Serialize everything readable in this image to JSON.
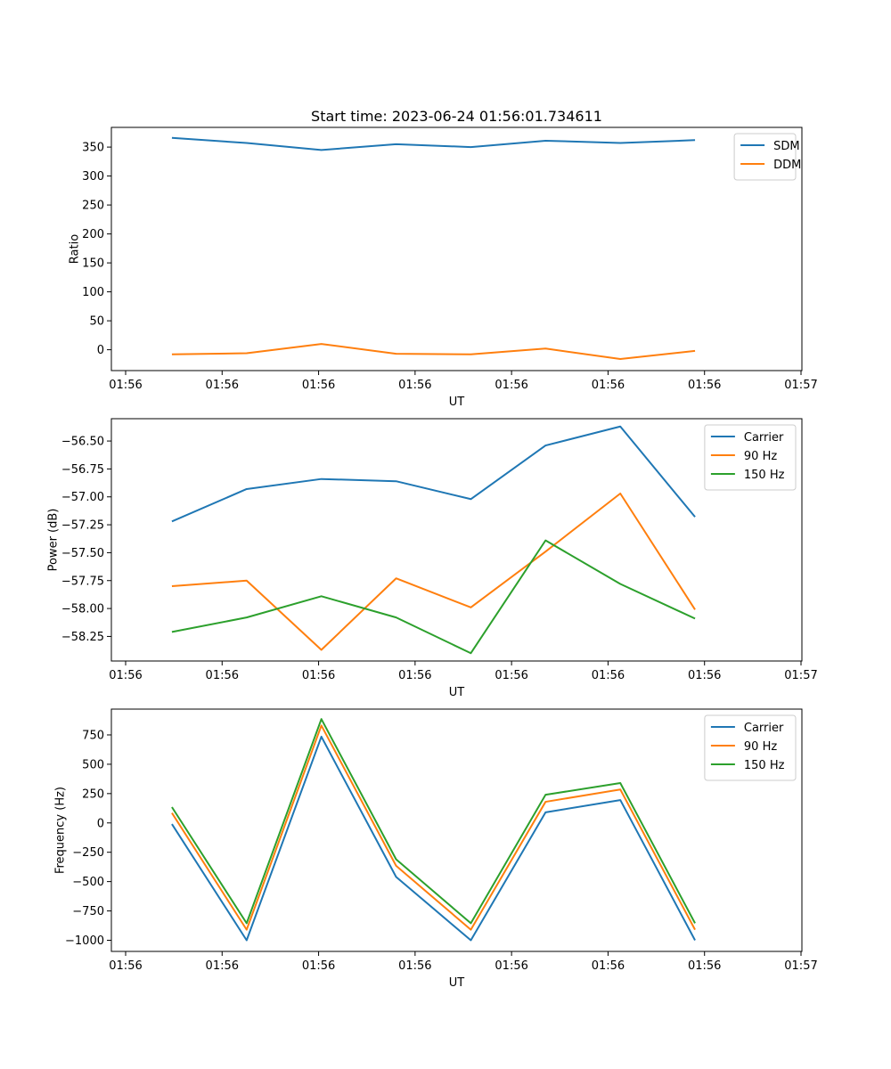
{
  "figure": {
    "title": "Start time: 2023-06-24 01:56:01.734611"
  },
  "chart_data": [
    {
      "type": "line",
      "title": "Start time: 2023-06-24 01:56:01.734611",
      "xlabel": "UT",
      "ylabel": "Ratio",
      "x_tick_labels": [
        "01:56",
        "01:56",
        "01:56",
        "01:56",
        "01:56",
        "01:56",
        "01:56"
      ],
      "x_last_tick_label": "01:57",
      "x": [
        1,
        2,
        3,
        4,
        5,
        6,
        7,
        8
      ],
      "xlim": [
        0.19,
        9.43
      ],
      "ylim": [
        -36,
        384
      ],
      "y_ticks": [
        0,
        50,
        100,
        150,
        200,
        250,
        300,
        350
      ],
      "legend": "top-right",
      "grid": false,
      "series": [
        {
          "name": "SDM",
          "color": "#1f77b4",
          "values": [
            366,
            357,
            345,
            355,
            350,
            361,
            357,
            362
          ]
        },
        {
          "name": "DDM",
          "color": "#ff7f0e",
          "values": [
            -8,
            -6,
            10,
            -7,
            -8,
            2,
            -16,
            -2
          ]
        }
      ]
    },
    {
      "type": "line",
      "xlabel": "UT",
      "ylabel": "Power (dB)",
      "x_tick_labels": [
        "01:56",
        "01:56",
        "01:56",
        "01:56",
        "01:56",
        "01:56",
        "01:56"
      ],
      "x_last_tick_label": "01:57",
      "x": [
        1,
        2,
        3,
        4,
        5,
        6,
        7,
        8
      ],
      "xlim": [
        0.19,
        9.43
      ],
      "ylim": [
        -58.47,
        -56.3
      ],
      "y_ticks": [
        -58.25,
        -58.0,
        -57.75,
        -57.5,
        -57.25,
        -57.0,
        -56.75,
        -56.5
      ],
      "y_tick_labels": [
        "−58.25",
        "−58.00",
        "−57.75",
        "−57.50",
        "−57.25",
        "−57.00",
        "−56.75",
        "−56.50"
      ],
      "legend": "top-right",
      "grid": false,
      "series": [
        {
          "name": "Carrier",
          "color": "#1f77b4",
          "values": [
            -57.22,
            -56.93,
            -56.84,
            -56.86,
            -57.02,
            -56.54,
            -56.37,
            -57.18
          ]
        },
        {
          "name": "90 Hz",
          "color": "#ff7f0e",
          "values": [
            -57.8,
            -57.75,
            -58.37,
            -57.73,
            -57.99,
            -57.49,
            -56.97,
            -58.01
          ]
        },
        {
          "name": "150 Hz",
          "color": "#2ca02c",
          "values": [
            -58.21,
            -58.08,
            -57.89,
            -58.08,
            -58.4,
            -57.39,
            -57.78,
            -58.09
          ]
        }
      ]
    },
    {
      "type": "line",
      "xlabel": "UT",
      "ylabel": "Frequency (Hz)",
      "x_tick_labels": [
        "01:56",
        "01:56",
        "01:56",
        "01:56",
        "01:56",
        "01:56",
        "01:56"
      ],
      "x_last_tick_label": "01:57",
      "x": [
        1,
        2,
        3,
        4,
        5,
        6,
        7,
        8
      ],
      "xlim": [
        0.19,
        9.43
      ],
      "ylim": [
        -1095,
        970
      ],
      "y_ticks": [
        -1000,
        -750,
        -500,
        -250,
        0,
        250,
        500,
        750
      ],
      "y_tick_labels": [
        "−1000",
        "−750",
        "−500",
        "−250",
        "0",
        "250",
        "500",
        "750"
      ],
      "legend": "top-right",
      "grid": false,
      "series": [
        {
          "name": "Carrier",
          "color": "#1f77b4",
          "values": [
            -10,
            -1000,
            735,
            -460,
            -1000,
            90,
            195,
            -1000
          ]
        },
        {
          "name": "90 Hz",
          "color": "#ff7f0e",
          "values": [
            85,
            -910,
            830,
            -365,
            -910,
            180,
            285,
            -910
          ]
        },
        {
          "name": "150 Hz",
          "color": "#2ca02c",
          "values": [
            135,
            -855,
            885,
            -310,
            -855,
            240,
            340,
            -855
          ]
        }
      ]
    }
  ]
}
